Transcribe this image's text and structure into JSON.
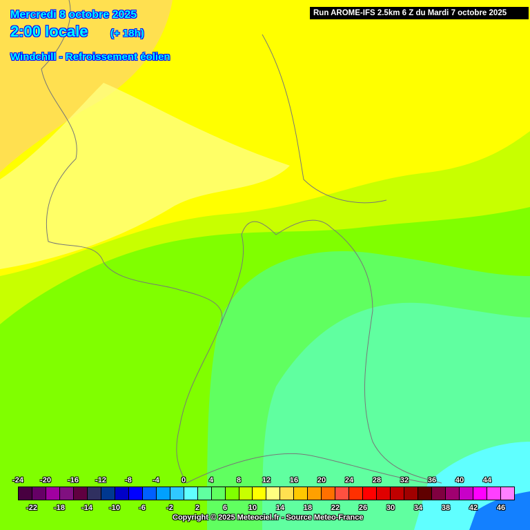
{
  "header": {
    "date": "Mercredi 8 octobre 2025",
    "time": "2:00 locale",
    "lead": "(+ 18h)",
    "parameter": "Windchill - Refroissement éolien",
    "run": "Run AROME-IFS 2.5km 6 Z du Mardi 7 octobre 2025"
  },
  "legend": {
    "top_labels": [
      "-24",
      "-20",
      "-16",
      "-12",
      "-8",
      "-4",
      "0",
      "4",
      "8",
      "12",
      "16",
      "20",
      "24",
      "28",
      "32",
      "36",
      "40",
      "44"
    ],
    "bottom_labels": [
      "-22",
      "-18",
      "-14",
      "-10",
      "-6",
      "-2",
      "2",
      "6",
      "10",
      "14",
      "18",
      "22",
      "26",
      "30",
      "34",
      "38",
      "42",
      "46"
    ],
    "colors": [
      "#480040",
      "#660066",
      "#a000a0",
      "#801080",
      "#600040",
      "#303060",
      "#003890",
      "#0000c8",
      "#0000ff",
      "#0060ff",
      "#00a0ff",
      "#30c8ff",
      "#60ffff",
      "#60ffa0",
      "#60ff60",
      "#80ff00",
      "#c8ff00",
      "#ffff00",
      "#ffff80",
      "#ffe050",
      "#ffc800",
      "#ffa000",
      "#ff7000",
      "#ff5040",
      "#ff3000",
      "#ff0000",
      "#e00000",
      "#c00000",
      "#a00000",
      "#600000",
      "#800040",
      "#a00070",
      "#c800c8",
      "#ff00ff",
      "#ff40ff",
      "#ff80ff"
    ]
  },
  "copyright": "Copyright © 2025 Meteociel.fr - Source Meteo-France"
}
